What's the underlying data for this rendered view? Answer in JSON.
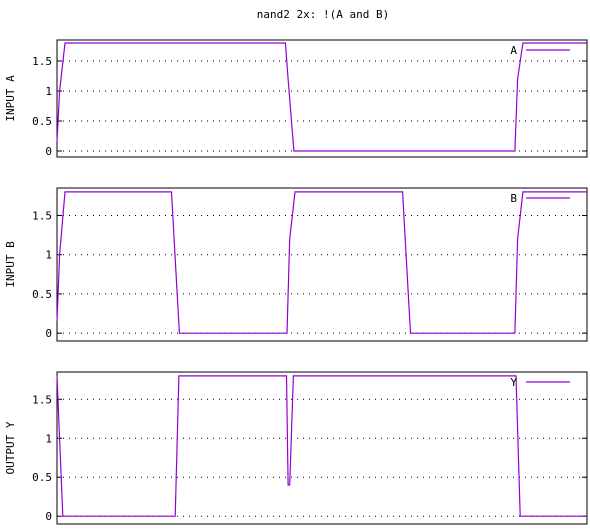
{
  "chart_data": {
    "type": "line",
    "title": "nand2 2x: !(A and B)",
    "x_range": [
      0,
      100
    ],
    "panels": [
      {
        "ylabel": "INPUT A",
        "ylim": [
          -0.1,
          1.85
        ],
        "yticks": [
          {
            "v": 0,
            "label": "0"
          },
          {
            "v": 0.5,
            "label": "0.5"
          },
          {
            "v": 1,
            "label": "1"
          },
          {
            "v": 1.5,
            "label": "1.5"
          }
        ],
        "grid": true,
        "legend_position": "top-right",
        "color": "#9400d3",
        "series": [
          {
            "name": "A",
            "x": [
              0,
              0.5,
              1.5,
              43.1,
              43.6,
              44.7,
              86.4,
              86.9,
              87.9,
              100
            ],
            "y": [
              0.15,
              1.0,
              1.8,
              1.8,
              1.2,
              0,
              0,
              1.2,
              1.8,
              1.8
            ]
          }
        ]
      },
      {
        "ylabel": "INPUT B",
        "ylim": [
          -0.1,
          1.85
        ],
        "yticks": [
          {
            "v": 0,
            "label": "0"
          },
          {
            "v": 0.5,
            "label": "0.5"
          },
          {
            "v": 1,
            "label": "1"
          },
          {
            "v": 1.5,
            "label": "1.5"
          }
        ],
        "grid": true,
        "legend_position": "top-right",
        "color": "#9400d3",
        "series": [
          {
            "name": "B",
            "x": [
              0,
              0.5,
              1.5,
              21.6,
              22.1,
              23.1,
              43.4,
              43.9,
              44.9,
              65.2,
              65.7,
              66.7,
              86.4,
              86.9,
              87.9,
              100
            ],
            "y": [
              0.15,
              1.0,
              1.8,
              1.8,
              1.2,
              0,
              0,
              1.2,
              1.8,
              1.8,
              1.2,
              0,
              0,
              1.2,
              1.8,
              1.8
            ]
          }
        ]
      },
      {
        "ylabel": "OUTPUT Y",
        "ylim": [
          -0.1,
          1.85
        ],
        "yticks": [
          {
            "v": 0,
            "label": "0"
          },
          {
            "v": 0.5,
            "label": "0.5"
          },
          {
            "v": 1,
            "label": "1"
          },
          {
            "v": 1.5,
            "label": "1.5"
          }
        ],
        "grid": true,
        "legend_position": "top-right",
        "color": "#9400d3",
        "series": [
          {
            "name": "Y",
            "x": [
              0,
              0.3,
              1.1,
              22.3,
              23.0,
              43.3,
              43.6,
              43.9,
              44.6,
              86.6,
              87.4,
              100
            ],
            "y": [
              1.8,
              1.3,
              0,
              0,
              1.8,
              1.8,
              0.4,
              0.4,
              1.8,
              1.8,
              0,
              0
            ]
          }
        ]
      }
    ]
  }
}
